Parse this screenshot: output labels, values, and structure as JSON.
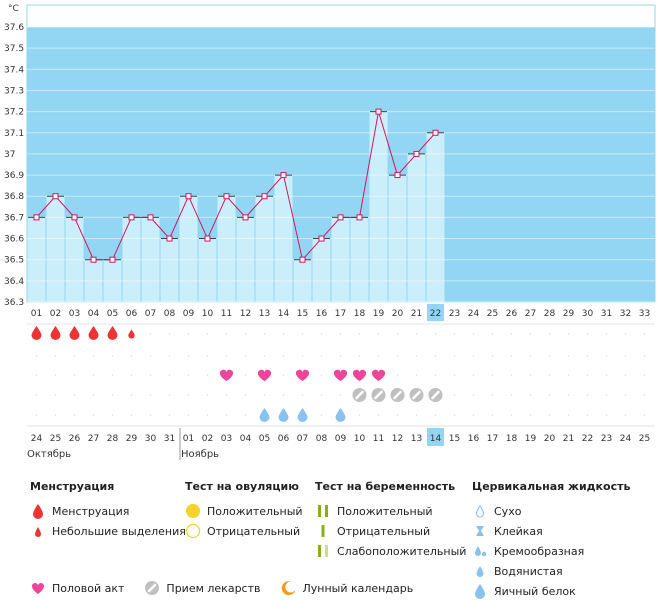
{
  "chart_data": {
    "type": "line",
    "unit": "°C",
    "y_ticks": [
      "37.6",
      "37.5",
      "37.4",
      "37.3",
      "37.2",
      "37.1",
      "37",
      "36.9",
      "36.8",
      "36.7",
      "36.6",
      "36.5",
      "36.4",
      "36.3"
    ],
    "ylim": [
      36.3,
      37.6
    ],
    "cycle_days": [
      "01",
      "02",
      "03",
      "04",
      "05",
      "06",
      "07",
      "08",
      "09",
      "10",
      "11",
      "12",
      "13",
      "14",
      "15",
      "16",
      "17",
      "18",
      "19",
      "20",
      "21",
      "22",
      "23",
      "24",
      "25",
      "26",
      "27",
      "28",
      "29",
      "30",
      "31",
      "32",
      "33"
    ],
    "current_day": "22",
    "temperatures": [
      36.7,
      36.8,
      36.7,
      36.5,
      36.5,
      36.7,
      36.7,
      36.6,
      36.8,
      36.6,
      36.8,
      36.7,
      36.8,
      36.9,
      36.5,
      36.6,
      36.7,
      36.7,
      37.2,
      36.9,
      37.0,
      37.1
    ],
    "calendar_dates": [
      "24",
      "25",
      "26",
      "27",
      "28",
      "29",
      "30",
      "31",
      "01",
      "02",
      "03",
      "04",
      "05",
      "06",
      "07",
      "08",
      "09",
      "10",
      "11",
      "12",
      "13",
      "14",
      "15",
      "16",
      "17",
      "18",
      "19",
      "20",
      "21",
      "22",
      "23",
      "24",
      "25"
    ],
    "red_dates_idx": [
      5,
      6,
      12,
      13,
      19,
      20,
      26,
      27
    ],
    "today_date_idx": 21,
    "month_labels": [
      {
        "label": "Октябрь",
        "day_idx": 0
      },
      {
        "label": "Ноябрь",
        "day_idx": 8
      }
    ],
    "menstruation_days": [
      0,
      1,
      2,
      3,
      4
    ],
    "spotting_days": [
      5
    ],
    "intercourse_days": [
      10,
      12,
      14,
      16,
      17,
      18
    ],
    "medication_days": [
      17,
      18,
      19,
      20,
      21
    ],
    "cervical_fluid_days": [
      12,
      13,
      14,
      16
    ]
  },
  "colors": {
    "background": "#93d6f3",
    "bar": "#cbeefb",
    "line": "#d6145f",
    "today": "#93d6f3",
    "red_text": "#cc0033",
    "menstruation": "#ee3333",
    "heart": "#ee4499",
    "pill": "#c0c0c0",
    "fluid": "#89c2ee",
    "ovulation": "#f5d328",
    "moon": "#f39b1f",
    "test_pos": "#85b018"
  },
  "legend": {
    "menstruation": {
      "title": "Менструация",
      "items": [
        "Менструация",
        "Небольшие выделения"
      ]
    },
    "ovulation_test": {
      "title": "Тест на овуляцию",
      "items": [
        "Положительный",
        "Отрицательный"
      ]
    },
    "pregnancy_test": {
      "title": "Тест на беременность",
      "items": [
        "Положительный",
        "Отрицательный",
        "Слабоположительный"
      ]
    },
    "cervical_fluid": {
      "title": "Цервикальная жидкость",
      "items": [
        "Сухо",
        "Клейкая",
        "Кремообразная",
        "Водянистая",
        "Яичный белок"
      ]
    }
  },
  "bottom_legend": {
    "intercourse": "Половой акт",
    "medication": "Прием лекарств",
    "lunar": "Лунный календарь"
  }
}
